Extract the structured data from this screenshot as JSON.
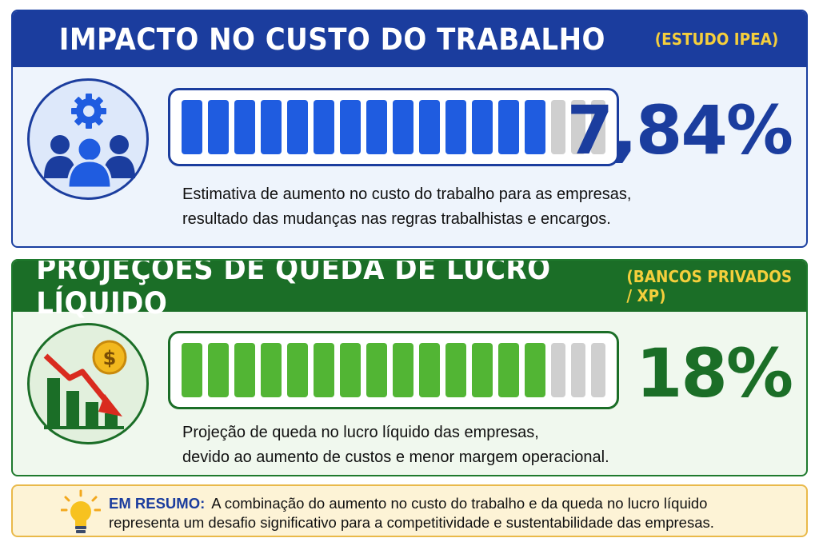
{
  "labor_cost": {
    "title": "IMPACTO NO CUSTO DO TRABALHO",
    "source": "(ESTUDO IPEA)",
    "value": "7,84%",
    "progress_filled_segments": 14,
    "progress_total_segments": 17,
    "description_line1": "Estimativa de aumento no custo do trabalho para as empresas,",
    "description_line2": "resultado das mudanças nas regras trabalhistas e encargos.",
    "icon": "team-gear-icon"
  },
  "profit_drop": {
    "title": "PROJEÇÕES DE QUEDA DE LUCRO LÍQUIDO",
    "source": "(BANCOS PRIVADOS / XP)",
    "value": "18%",
    "progress_filled_segments": 14,
    "progress_total_segments": 17,
    "description_line1": "Projeção de queda no lucro líquido das empresas,",
    "description_line2": "devido ao aumento de custos e menor margem operacional.",
    "icon": "declining-chart-coin-icon"
  },
  "summary": {
    "label": "EM RESUMO:",
    "line1": "A combinação do aumento no custo do trabalho e da queda no lucro líquido",
    "line2": "representa um desafio significativo para a competitividade e sustentabilidade das empresas.",
    "icon": "lightbulb-icon"
  },
  "colors": {
    "blue": "#1b3d9e",
    "bar_blue": "#1f5ce0",
    "green": "#1b6e27",
    "bar_green": "#52b534",
    "accent_yellow": "#f5cf3c",
    "empty_segment": "#cfcfcf"
  }
}
